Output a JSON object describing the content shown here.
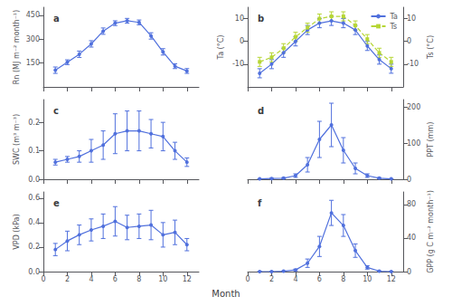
{
  "xlabel": "Month",
  "chart_data": [
    {
      "type": "line",
      "title": "a",
      "ylabel": "Rn (MJ m⁻² month⁻¹)",
      "x": [
        1,
        2,
        3,
        4,
        5,
        6,
        7,
        8,
        9,
        10,
        11,
        12
      ],
      "series": [
        {
          "values": [
            105,
            155,
            205,
            270,
            350,
            400,
            415,
            405,
            320,
            220,
            130,
            100
          ],
          "errors": [
            20,
            15,
            20,
            20,
            20,
            15,
            15,
            15,
            20,
            20,
            15,
            15
          ]
        }
      ],
      "marker": "circle",
      "line_style": "solid",
      "xlim": [
        0,
        13
      ],
      "xticks": [
        0,
        2,
        4,
        6,
        8,
        10,
        12
      ],
      "ylim": [
        0,
        500
      ],
      "yticks": [
        150,
        300,
        450
      ],
      "grid": false,
      "tick_labels": "y"
    },
    {
      "type": "line",
      "title": "b",
      "ylabel": "Ta (°C)",
      "y2label": "Ts (°C)",
      "x": [
        1,
        2,
        3,
        4,
        5,
        6,
        7,
        8,
        9,
        10,
        11,
        12
      ],
      "series": [
        {
          "name": "Ta",
          "values": [
            -14,
            -10,
            -5,
            0,
            5,
            8,
            9,
            8,
            5,
            -2,
            -8,
            -12
          ],
          "errors": [
            2,
            2,
            2,
            2,
            2,
            2,
            2,
            2,
            2,
            2,
            2,
            2
          ],
          "marker": "circle",
          "line_style": "solid"
        },
        {
          "name": "Ts",
          "values": [
            -9,
            -7,
            -3,
            2,
            6,
            10,
            11,
            11,
            7,
            1,
            -5,
            -9
          ],
          "errors": [
            2,
            2,
            2,
            2,
            2,
            2,
            2,
            2,
            2,
            2,
            2,
            2
          ],
          "marker": "square",
          "line_style": "dashed",
          "axis": "y2"
        }
      ],
      "xlim": [
        0,
        13
      ],
      "xticks": [
        0,
        2,
        4,
        6,
        8,
        10,
        12
      ],
      "ylim": [
        -20,
        15
      ],
      "yticks": [
        -10,
        0,
        10
      ],
      "y2lim": [
        -20,
        15
      ],
      "y2ticks": [
        -10,
        0,
        10
      ],
      "grid": false,
      "legend": "upper right",
      "tick_labels": "y"
    },
    {
      "type": "line",
      "title": "c",
      "ylabel": "SWC (m³ m⁻³)",
      "x": [
        1,
        2,
        3,
        4,
        5,
        6,
        7,
        8,
        9,
        10,
        11,
        12
      ],
      "series": [
        {
          "values": [
            0.06,
            0.07,
            0.08,
            0.1,
            0.12,
            0.16,
            0.17,
            0.17,
            0.16,
            0.15,
            0.1,
            0.06
          ],
          "errors": [
            0.01,
            0.01,
            0.02,
            0.04,
            0.05,
            0.07,
            0.07,
            0.07,
            0.05,
            0.05,
            0.03,
            0.015
          ]
        }
      ],
      "marker": "circle",
      "line_style": "solid",
      "xlim": [
        0,
        13
      ],
      "xticks": [
        0,
        2,
        4,
        6,
        8,
        10,
        12
      ],
      "ylim": [
        0,
        0.28
      ],
      "yticks": [
        {
          "value": 0,
          "label": "0.0"
        },
        0.1,
        0.2
      ],
      "grid": false,
      "tick_labels": "y"
    },
    {
      "type": "line",
      "title": "d",
      "y2label": "PPT (mm)",
      "x": [
        1,
        2,
        3,
        4,
        5,
        6,
        7,
        8,
        9,
        10,
        11,
        12
      ],
      "series": [
        {
          "values": [
            1,
            2,
            3,
            10,
            40,
            110,
            150,
            80,
            30,
            10,
            3,
            1
          ],
          "errors": [
            0.5,
            1,
            1.5,
            5,
            20,
            50,
            60,
            35,
            15,
            5,
            1.5,
            0.5
          ],
          "axis": "y2"
        }
      ],
      "marker": "circle",
      "line_style": "solid",
      "xlim": [
        0,
        13
      ],
      "xticks": [
        0,
        2,
        4,
        6,
        8,
        10,
        12
      ],
      "y2lim": [
        0,
        220
      ],
      "y2ticks": [
        0,
        100,
        200
      ],
      "grid": false,
      "tick_labels": "y"
    },
    {
      "type": "line",
      "title": "e",
      "ylabel": "VPD (kPa)",
      "x": [
        1,
        2,
        3,
        4,
        5,
        6,
        7,
        8,
        9,
        10,
        11,
        12
      ],
      "series": [
        {
          "values": [
            0.18,
            0.25,
            0.3,
            0.34,
            0.37,
            0.41,
            0.36,
            0.37,
            0.38,
            0.3,
            0.32,
            0.22
          ],
          "errors": [
            0.05,
            0.08,
            0.08,
            0.09,
            0.1,
            0.12,
            0.1,
            0.1,
            0.12,
            0.1,
            0.1,
            0.05
          ]
        }
      ],
      "marker": "circle",
      "line_style": "solid",
      "xlim": [
        0,
        13
      ],
      "xticks": [
        0,
        2,
        4,
        6,
        8,
        10,
        12
      ],
      "ylim": [
        0,
        0.65
      ],
      "yticks": [
        {
          "value": 0,
          "label": "0.0"
        },
        0.2,
        0.4,
        0.6
      ],
      "grid": false
    },
    {
      "type": "line",
      "title": "f",
      "y2label": "GPP (g C m⁻² month⁻¹)",
      "x": [
        1,
        2,
        3,
        4,
        5,
        6,
        7,
        8,
        9,
        10,
        11,
        12
      ],
      "series": [
        {
          "values": [
            0.0,
            0.0,
            0.5,
            2.0,
            10.0,
            30.0,
            70.0,
            55.0,
            25.0,
            5.0,
            0.5,
            0.0
          ],
          "errors": [
            0.0,
            0.0,
            0.3,
            1.0,
            5.0,
            12.0,
            15.0,
            13.0,
            8.0,
            2.0,
            0.3,
            0.0
          ],
          "axis": "y2"
        }
      ],
      "marker": "circle",
      "line_style": "solid",
      "xlim": [
        0,
        13
      ],
      "xticks": [
        0,
        2,
        4,
        6,
        8,
        10,
        12
      ],
      "y2lim": [
        0,
        95
      ],
      "y2ticks": [
        0,
        40,
        80
      ],
      "grid": false
    }
  ]
}
